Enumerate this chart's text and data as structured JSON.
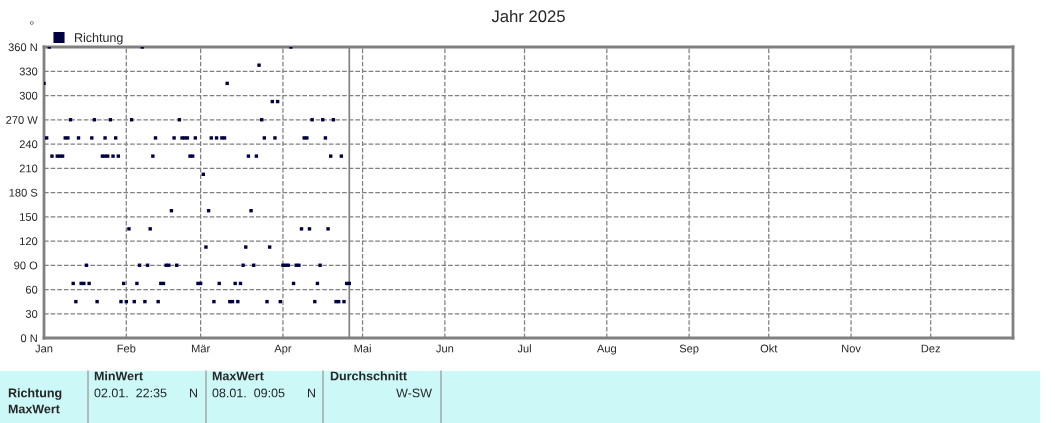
{
  "chart_data": {
    "type": "scatter",
    "title": "Jahr 2025",
    "ylabel": "°",
    "x": [
      "2025-01-01",
      "2025-01-03",
      "2025-02-07",
      "2025-04-04",
      "2025-01-11",
      "2025-01-20",
      "2025-01-26",
      "2025-02-03",
      "2025-02-21",
      "2025-03-24",
      "2025-04-12",
      "2025-04-16",
      "2025-04-20",
      "2025-01-02",
      "2025-01-09",
      "2025-01-10",
      "2025-01-14",
      "2025-01-19",
      "2025-01-24",
      "2025-01-28",
      "2025-02-12",
      "2025-02-19",
      "2025-02-22",
      "2025-02-23",
      "2025-02-24",
      "2025-02-27",
      "2025-03-05",
      "2025-03-07",
      "2025-03-09",
      "2025-03-10",
      "2025-03-25",
      "2025-03-29",
      "2025-04-09",
      "2025-04-10",
      "2025-04-17",
      "2025-01-04",
      "2025-01-06",
      "2025-01-07",
      "2025-01-08",
      "2025-01-23",
      "2025-01-24",
      "2025-01-25",
      "2025-01-27",
      "2025-01-29",
      "2025-02-11",
      "2025-02-25",
      "2025-02-26",
      "2025-03-19",
      "2025-03-22",
      "2025-04-19",
      "2025-04-23",
      "2025-03-02",
      "2025-03-11",
      "2025-03-23",
      "2025-03-28",
      "2025-03-30",
      "2025-02-18",
      "2025-03-04",
      "2025-03-20",
      "2025-02-02",
      "2025-02-10",
      "2025-04-08",
      "2025-04-11",
      "2025-04-18",
      "2025-03-03",
      "2025-03-18",
      "2025-03-27",
      "2025-01-17",
      "2025-02-06",
      "2025-02-09",
      "2025-02-16",
      "2025-02-17",
      "2025-02-20",
      "2025-03-17",
      "2025-03-21",
      "2025-04-01",
      "2025-04-02",
      "2025-04-03",
      "2025-04-06",
      "2025-04-07",
      "2025-04-15",
      "2025-01-12",
      "2025-01-15",
      "2025-01-16",
      "2025-01-18",
      "2025-01-31",
      "2025-02-05",
      "2025-02-14",
      "2025-02-15",
      "2025-02-28",
      "2025-03-01",
      "2025-03-08",
      "2025-03-14",
      "2025-03-16",
      "2025-04-05",
      "2025-04-14",
      "2025-04-25",
      "2025-04-26",
      "2025-01-13",
      "2025-01-21",
      "2025-01-30",
      "2025-02-01",
      "2025-02-04",
      "2025-02-08",
      "2025-02-13",
      "2025-03-06",
      "2025-03-12",
      "2025-03-13",
      "2025-03-15",
      "2025-03-26",
      "2025-03-31",
      "2025-04-13",
      "2025-04-21",
      "2025-04-22",
      "2025-04-24"
    ],
    "series": [
      {
        "name": "Richtung",
        "color": "#000040",
        "values": [
          315,
          360,
          360,
          360,
          270,
          270,
          270,
          270,
          270,
          270,
          270,
          270,
          270,
          247.5,
          247.5,
          247.5,
          247.5,
          247.5,
          247.5,
          247.5,
          247.5,
          247.5,
          247.5,
          247.5,
          247.5,
          247.5,
          247.5,
          247.5,
          247.5,
          247.5,
          247.5,
          247.5,
          247.5,
          247.5,
          247.5,
          225,
          225,
          225,
          225,
          225,
          225,
          225,
          225,
          225,
          225,
          225,
          225,
          225,
          225,
          225,
          225,
          202.5,
          315,
          337.5,
          292.5,
          292.5,
          157.5,
          157.5,
          157.5,
          135,
          135,
          135,
          135,
          135,
          112.5,
          112.5,
          112.5,
          90,
          90,
          90,
          90,
          90,
          90,
          90,
          90,
          90,
          90,
          90,
          90,
          90,
          90,
          67.5,
          67.5,
          67.5,
          67.5,
          67.5,
          67.5,
          67.5,
          67.5,
          67.5,
          67.5,
          67.5,
          67.5,
          67.5,
          67.5,
          67.5,
          67.5,
          67.5,
          45,
          45,
          45,
          45,
          45,
          45,
          45,
          45,
          45,
          45,
          45,
          45,
          45,
          45,
          45,
          45,
          45
        ]
      }
    ],
    "marker": "square",
    "legend": "top left",
    "grid": true,
    "line_style": "dashed",
    "xlim": [
      "2025-01-01",
      "2026-01-01"
    ],
    "xticks": [
      {
        "value": "2025-01-01",
        "label": "Jan"
      },
      {
        "value": "2025-02-01",
        "label": "Feb"
      },
      {
        "value": "2025-03-01",
        "label": "Mär"
      },
      {
        "value": "2025-04-01",
        "label": "Apr"
      },
      {
        "value": "2025-05-01",
        "label": "Mai"
      },
      {
        "value": "2025-06-01",
        "label": "Jun"
      },
      {
        "value": "2025-07-01",
        "label": "Jul"
      },
      {
        "value": "2025-08-01",
        "label": "Aug"
      },
      {
        "value": "2025-09-01",
        "label": "Sep"
      },
      {
        "value": "2025-10-01",
        "label": "Okt"
      },
      {
        "value": "2025-11-01",
        "label": "Nov"
      },
      {
        "value": "2025-12-01",
        "label": "Dez"
      }
    ],
    "ylim": [
      0,
      360
    ],
    "yticks": [
      {
        "value": 0,
        "label": "0 N"
      },
      30,
      60,
      {
        "value": 90,
        "label": "90 O"
      },
      120,
      150,
      {
        "value": 180,
        "label": "180 S"
      },
      210,
      240,
      {
        "value": 270,
        "label": "270 W"
      },
      300,
      330,
      {
        "value": 360,
        "label": "360 N"
      }
    ],
    "ref_lines": [
      {
        "axis": "x",
        "value": "2025-04-26",
        "color": "#808080",
        "line_style": "solid"
      }
    ],
    "annotations": [
      "Richtung",
      "MaxWert",
      "MinWert",
      "02.01.  22:35",
      "N",
      "MaxWert",
      "08.01.  09:05",
      "N",
      "Durchschnitt",
      "W-SW"
    ]
  }
}
